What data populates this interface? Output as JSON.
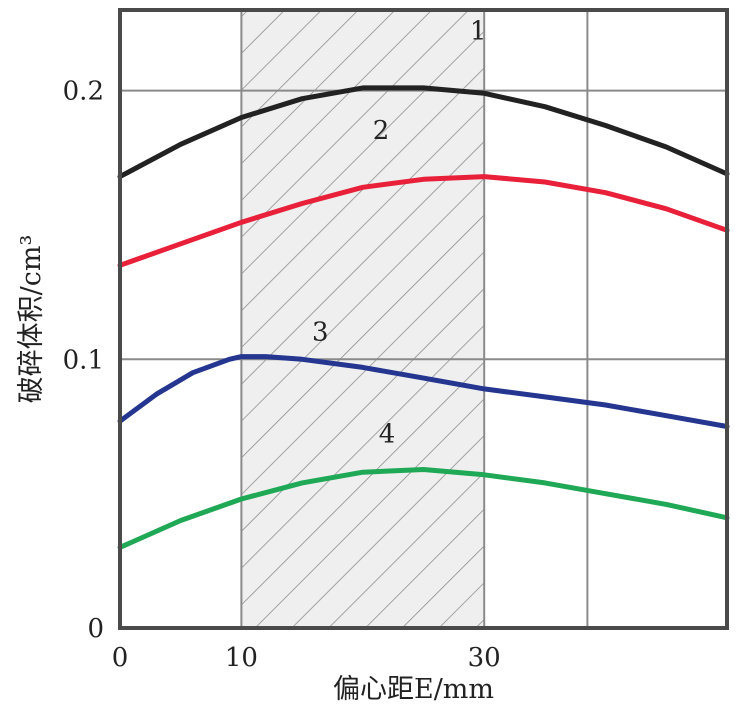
{
  "chart_data": {
    "type": "line",
    "xlabel": "偏心距E/mm",
    "ylabel": "破碎体积/cm³",
    "x_ticks": [
      {
        "value": 0,
        "label": "0"
      },
      {
        "value": 10,
        "label": "10"
      },
      {
        "value": 30,
        "label": "30"
      }
    ],
    "y_ticks": [
      {
        "value": 0,
        "label": "0"
      },
      {
        "value": 0.1,
        "label": "0.1"
      },
      {
        "value": 0.2,
        "label": "0.2"
      }
    ],
    "xlim": [
      0,
      50
    ],
    "ylim": [
      0,
      0.23
    ],
    "x_grid": [
      10,
      30,
      38.5
    ],
    "y_grid": [
      0.1,
      0.2
    ],
    "grid": true,
    "shaded_region": {
      "x": [
        10,
        30
      ],
      "pattern": "diagonal-hatch"
    },
    "series": [
      {
        "name": "1",
        "color": "#222222",
        "x": [
          0,
          5,
          10,
          15,
          20,
          25,
          30,
          35,
          40,
          45,
          50
        ],
        "y": [
          0.168,
          0.18,
          0.19,
          0.197,
          0.201,
          0.201,
          0.199,
          0.194,
          0.187,
          0.179,
          0.169
        ]
      },
      {
        "name": "2",
        "color": "#e8203a",
        "x": [
          0,
          5,
          10,
          15,
          20,
          25,
          30,
          35,
          40,
          45,
          50
        ],
        "y": [
          0.135,
          0.143,
          0.151,
          0.158,
          0.164,
          0.167,
          0.168,
          0.166,
          0.162,
          0.156,
          0.148
        ]
      },
      {
        "name": "3",
        "color": "#253691",
        "x": [
          0,
          3,
          6,
          9,
          10,
          12,
          15,
          20,
          25,
          30,
          35,
          40,
          45,
          50
        ],
        "y": [
          0.077,
          0.087,
          0.095,
          0.1,
          0.101,
          0.101,
          0.1,
          0.097,
          0.093,
          0.089,
          0.086,
          0.083,
          0.079,
          0.075
        ]
      },
      {
        "name": "4",
        "color": "#1fa855",
        "x": [
          0,
          5,
          10,
          15,
          20,
          25,
          30,
          35,
          40,
          45,
          50
        ],
        "y": [
          0.03,
          0.04,
          0.048,
          0.054,
          0.058,
          0.059,
          0.057,
          0.054,
          0.05,
          0.046,
          0.041
        ]
      }
    ],
    "series_labels": [
      {
        "text": "1",
        "x": 29.5,
        "y": 0.219
      },
      {
        "text": "2",
        "x": 21.5,
        "y": 0.182
      },
      {
        "text": "3",
        "x": 16.5,
        "y": 0.107
      },
      {
        "text": "4",
        "x": 22.0,
        "y": 0.069
      }
    ]
  }
}
